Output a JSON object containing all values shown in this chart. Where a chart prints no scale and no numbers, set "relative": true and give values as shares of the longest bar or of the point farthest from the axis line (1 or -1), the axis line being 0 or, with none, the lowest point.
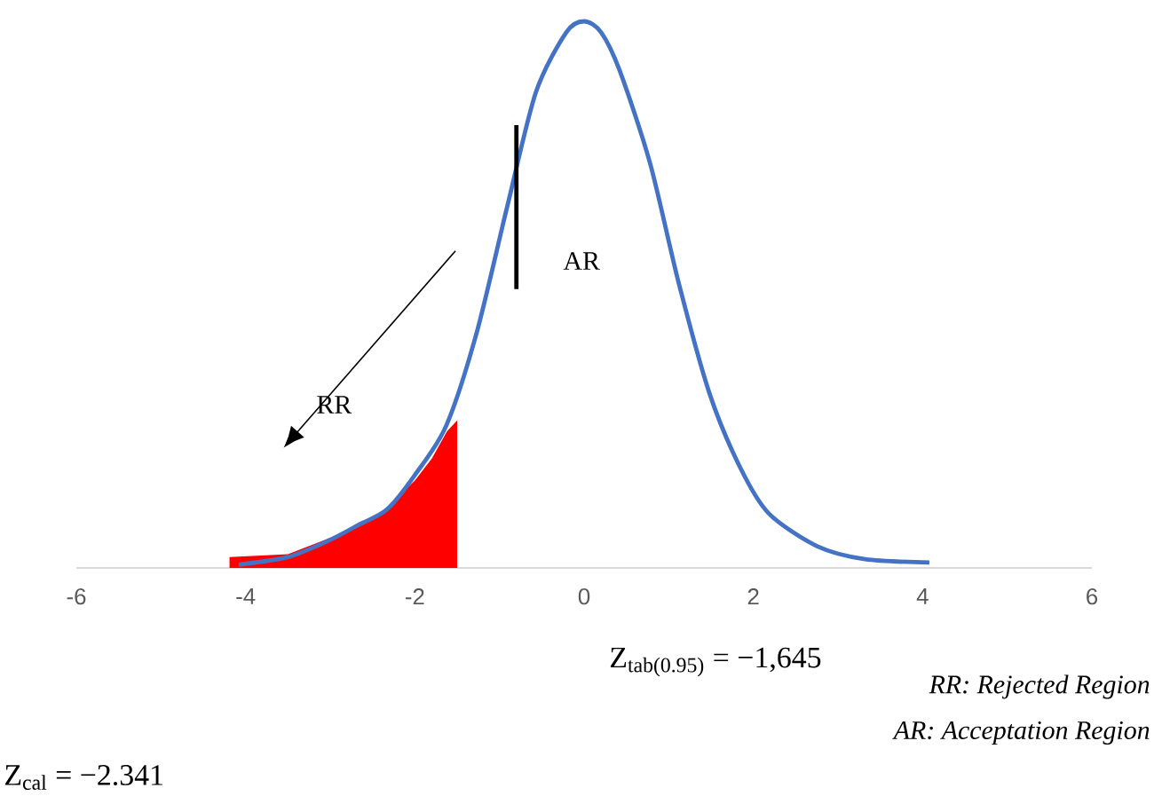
{
  "chart_data": {
    "type": "line",
    "relative": true,
    "xlim": [
      -6,
      6
    ],
    "xticks": [
      -6,
      -4,
      -2,
      0,
      2,
      4,
      6
    ],
    "series": [
      {
        "type": "area",
        "color": "#ff0000",
        "x": [
          -4.19,
          -4.19,
          -3.5,
          -3.0,
          -2.6,
          -2.33,
          -2.0,
          -1.8,
          -1.62,
          -1.5,
          -1.5
        ],
        "values": [
          0,
          0.02,
          0.025,
          0.055,
          0.08,
          0.11,
          0.16,
          0.2,
          0.25,
          0.27,
          0
        ]
      },
      {
        "color": "#4472c4",
        "x": [
          -4.08,
          -3.5,
          -3.02,
          -2.65,
          -2.33,
          -2.0,
          -1.63,
          -1.27,
          -0.91,
          -0.57,
          -0.21,
          0,
          0.2,
          0.42,
          0.78,
          1.12,
          1.48,
          1.84,
          2.18,
          2.75,
          3.32,
          4.08
        ],
        "values": [
          0.006,
          0.02,
          0.05,
          0.08,
          0.107,
          0.17,
          0.26,
          0.43,
          0.66,
          0.87,
          0.98,
          1,
          0.98,
          0.91,
          0.74,
          0.52,
          0.32,
          0.185,
          0.1,
          0.04,
          0.016,
          0.01
        ]
      },
      {
        "color": "#000000",
        "x": [
          -0.8,
          -0.8
        ],
        "values": [
          0.51,
          0.81
        ]
      }
    ],
    "annotations": [
      "RR",
      "AR",
      "Z$_{tab(0.95)}$ = −1,645",
      "RR: Rejected Region",
      "AR: Acceptation Region",
      "Z$_{cal}$ = −2.341"
    ]
  }
}
